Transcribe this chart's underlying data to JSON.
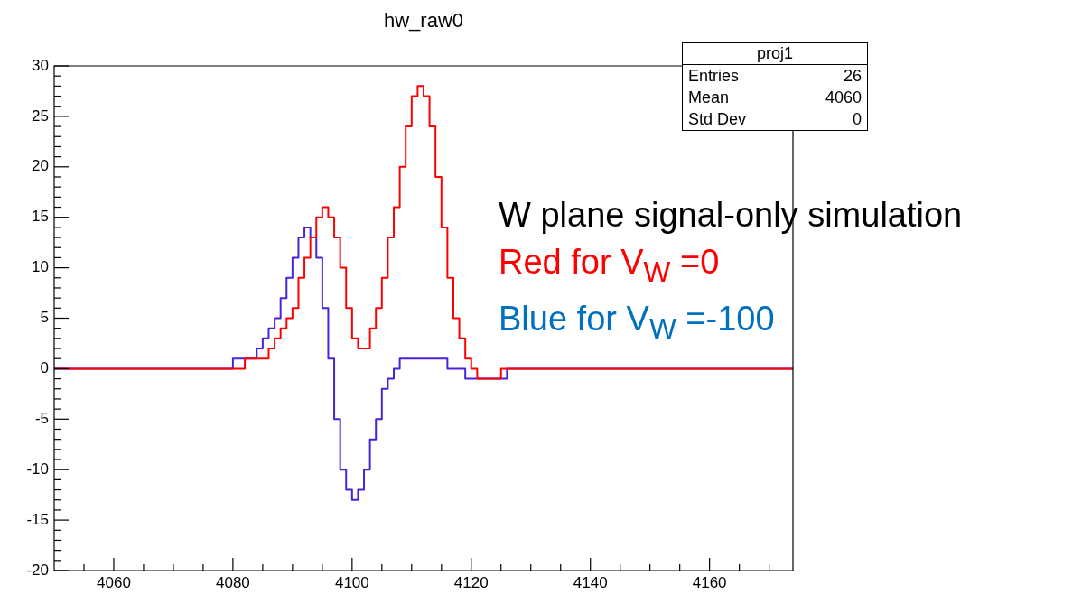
{
  "chart_data": {
    "type": "histogram",
    "title": "hw_raw0",
    "bins": [
      4050,
      4051,
      4052,
      4053,
      4054,
      4055,
      4056,
      4057,
      4058,
      4059,
      4060,
      4061,
      4062,
      4063,
      4064,
      4065,
      4066,
      4067,
      4068,
      4069,
      4070,
      4071,
      4072,
      4073,
      4074,
      4075,
      4076,
      4077,
      4078,
      4079,
      4080,
      4081,
      4082,
      4083,
      4084,
      4085,
      4086,
      4087,
      4088,
      4089,
      4090,
      4091,
      4092,
      4093,
      4094,
      4095,
      4096,
      4097,
      4098,
      4099,
      4100,
      4101,
      4102,
      4103,
      4104,
      4105,
      4106,
      4107,
      4108,
      4109,
      4110,
      4111,
      4112,
      4113,
      4114,
      4115,
      4116,
      4117,
      4118,
      4119,
      4120,
      4121,
      4122,
      4123,
      4124,
      4125,
      4126,
      4127,
      4128,
      4129,
      4130,
      4131,
      4132,
      4133,
      4134,
      4135,
      4136,
      4137,
      4138,
      4139,
      4140,
      4141,
      4142,
      4143,
      4144,
      4145,
      4146,
      4147,
      4148,
      4149,
      4150,
      4151,
      4152,
      4153,
      4154,
      4155,
      4156,
      4157,
      4158,
      4159,
      4160,
      4161,
      4162,
      4163,
      4164,
      4165,
      4166,
      4167,
      4168,
      4169,
      4170,
      4171,
      4172,
      4173,
      4174
    ],
    "series": [
      {
        "color": "#ff0000",
        "values": [
          0,
          0,
          0,
          0,
          0,
          0,
          0,
          0,
          0,
          0,
          0,
          0,
          0,
          0,
          0,
          0,
          0,
          0,
          0,
          0,
          0,
          0,
          0,
          0,
          0,
          0,
          0,
          0,
          0,
          0,
          0,
          0,
          1,
          1,
          1,
          1,
          2,
          3,
          4,
          5,
          6,
          9,
          11,
          13,
          15,
          16,
          15,
          13,
          10,
          6,
          3,
          2,
          2,
          4,
          6,
          9,
          13,
          16,
          20,
          24,
          27,
          28,
          27,
          24,
          19,
          14,
          9,
          5,
          3,
          1,
          0,
          -1,
          -1,
          -1,
          -1,
          0,
          0,
          0,
          0,
          0,
          0,
          0,
          0,
          0,
          0,
          0,
          0,
          0,
          0,
          0,
          0,
          0,
          0,
          0,
          0,
          0,
          0,
          0,
          0,
          0,
          0,
          0,
          0,
          0,
          0,
          0,
          0,
          0,
          0,
          0,
          0,
          0,
          0,
          0,
          0,
          0,
          0,
          0,
          0,
          0,
          0,
          0,
          0,
          0
        ]
      },
      {
        "color": "#4a22d8",
        "values": [
          0,
          0,
          0,
          0,
          0,
          0,
          0,
          0,
          0,
          0,
          0,
          0,
          0,
          0,
          0,
          0,
          0,
          0,
          0,
          0,
          0,
          0,
          0,
          0,
          0,
          0,
          0,
          0,
          0,
          0,
          1,
          1,
          1,
          1,
          2,
          3,
          4,
          5,
          7,
          9,
          11,
          13,
          14,
          13,
          11,
          6,
          1,
          -5,
          -10,
          -12,
          -13,
          -12,
          -10,
          -7,
          -5,
          -2,
          -1,
          0,
          1,
          1,
          1,
          1,
          1,
          1,
          1,
          1,
          0,
          0,
          0,
          -1,
          -1,
          -1,
          -1,
          -1,
          -1,
          -1,
          0,
          0,
          0,
          0,
          0,
          0,
          0,
          0,
          0,
          0,
          0,
          0,
          0,
          0,
          0,
          0,
          0,
          0,
          0,
          0,
          0,
          0,
          0,
          0,
          0,
          0,
          0,
          0,
          0,
          0,
          0,
          0,
          0,
          0,
          0,
          0,
          0,
          0,
          0,
          0,
          0,
          0,
          0,
          0,
          0,
          0,
          0,
          0
        ]
      }
    ],
    "xlim": [
      4050,
      4174
    ],
    "xticks": [
      {
        "value": 4055,
        "label": null
      },
      4060,
      {
        "value": 4065,
        "label": null
      },
      {
        "value": 4070,
        "label": null
      },
      {
        "value": 4075,
        "label": null
      },
      4080,
      {
        "value": 4085,
        "label": null
      },
      {
        "value": 4090,
        "label": null
      },
      {
        "value": 4095,
        "label": null
      },
      4100,
      {
        "value": 4105,
        "label": null
      },
      {
        "value": 4110,
        "label": null
      },
      {
        "value": 4115,
        "label": null
      },
      4120,
      {
        "value": 4125,
        "label": null
      },
      {
        "value": 4130,
        "label": null
      },
      {
        "value": 4135,
        "label": null
      },
      4140,
      {
        "value": 4145,
        "label": null
      },
      {
        "value": 4150,
        "label": null
      },
      {
        "value": 4155,
        "label": null
      },
      4160,
      {
        "value": 4165,
        "label": null
      },
      {
        "value": 4170,
        "label": null
      }
    ],
    "ylim": [
      -20,
      30
    ],
    "yticks": [
      -20,
      {
        "value": -19,
        "label": null
      },
      {
        "value": -18,
        "label": null
      },
      {
        "value": -17,
        "label": null
      },
      {
        "value": -16,
        "label": null
      },
      -15,
      {
        "value": -14,
        "label": null
      },
      {
        "value": -13,
        "label": null
      },
      {
        "value": -12,
        "label": null
      },
      {
        "value": -11,
        "label": null
      },
      -10,
      {
        "value": -9,
        "label": null
      },
      {
        "value": -8,
        "label": null
      },
      {
        "value": -7,
        "label": null
      },
      {
        "value": -6,
        "label": null
      },
      -5,
      {
        "value": -4,
        "label": null
      },
      {
        "value": -3,
        "label": null
      },
      {
        "value": -2,
        "label": null
      },
      {
        "value": -1,
        "label": null
      },
      0,
      {
        "value": 1,
        "label": null
      },
      {
        "value": 2,
        "label": null
      },
      {
        "value": 3,
        "label": null
      },
      {
        "value": 4,
        "label": null
      },
      5,
      {
        "value": 6,
        "label": null
      },
      {
        "value": 7,
        "label": null
      },
      {
        "value": 8,
        "label": null
      },
      {
        "value": 9,
        "label": null
      },
      10,
      {
        "value": 11,
        "label": null
      },
      {
        "value": 12,
        "label": null
      },
      {
        "value": 13,
        "label": null
      },
      {
        "value": 14,
        "label": null
      },
      15,
      {
        "value": 16,
        "label": null
      },
      {
        "value": 17,
        "label": null
      },
      {
        "value": 18,
        "label": null
      },
      {
        "value": 19,
        "label": null
      },
      20,
      {
        "value": 21,
        "label": null
      },
      {
        "value": 22,
        "label": null
      },
      {
        "value": 23,
        "label": null
      },
      {
        "value": 24,
        "label": null
      },
      25,
      {
        "value": 26,
        "label": null
      },
      {
        "value": 27,
        "label": null
      },
      {
        "value": 28,
        "label": null
      },
      {
        "value": 29,
        "label": null
      },
      30
    ],
    "annotations": [
      "W plane signal-only simulation",
      "Red for V$_{W}$ =0",
      "Blue for V$_{W}$ =-100",
      "proj1",
      "Entries",
      "26",
      "Mean",
      "4060",
      "Std Dev",
      "0"
    ]
  }
}
